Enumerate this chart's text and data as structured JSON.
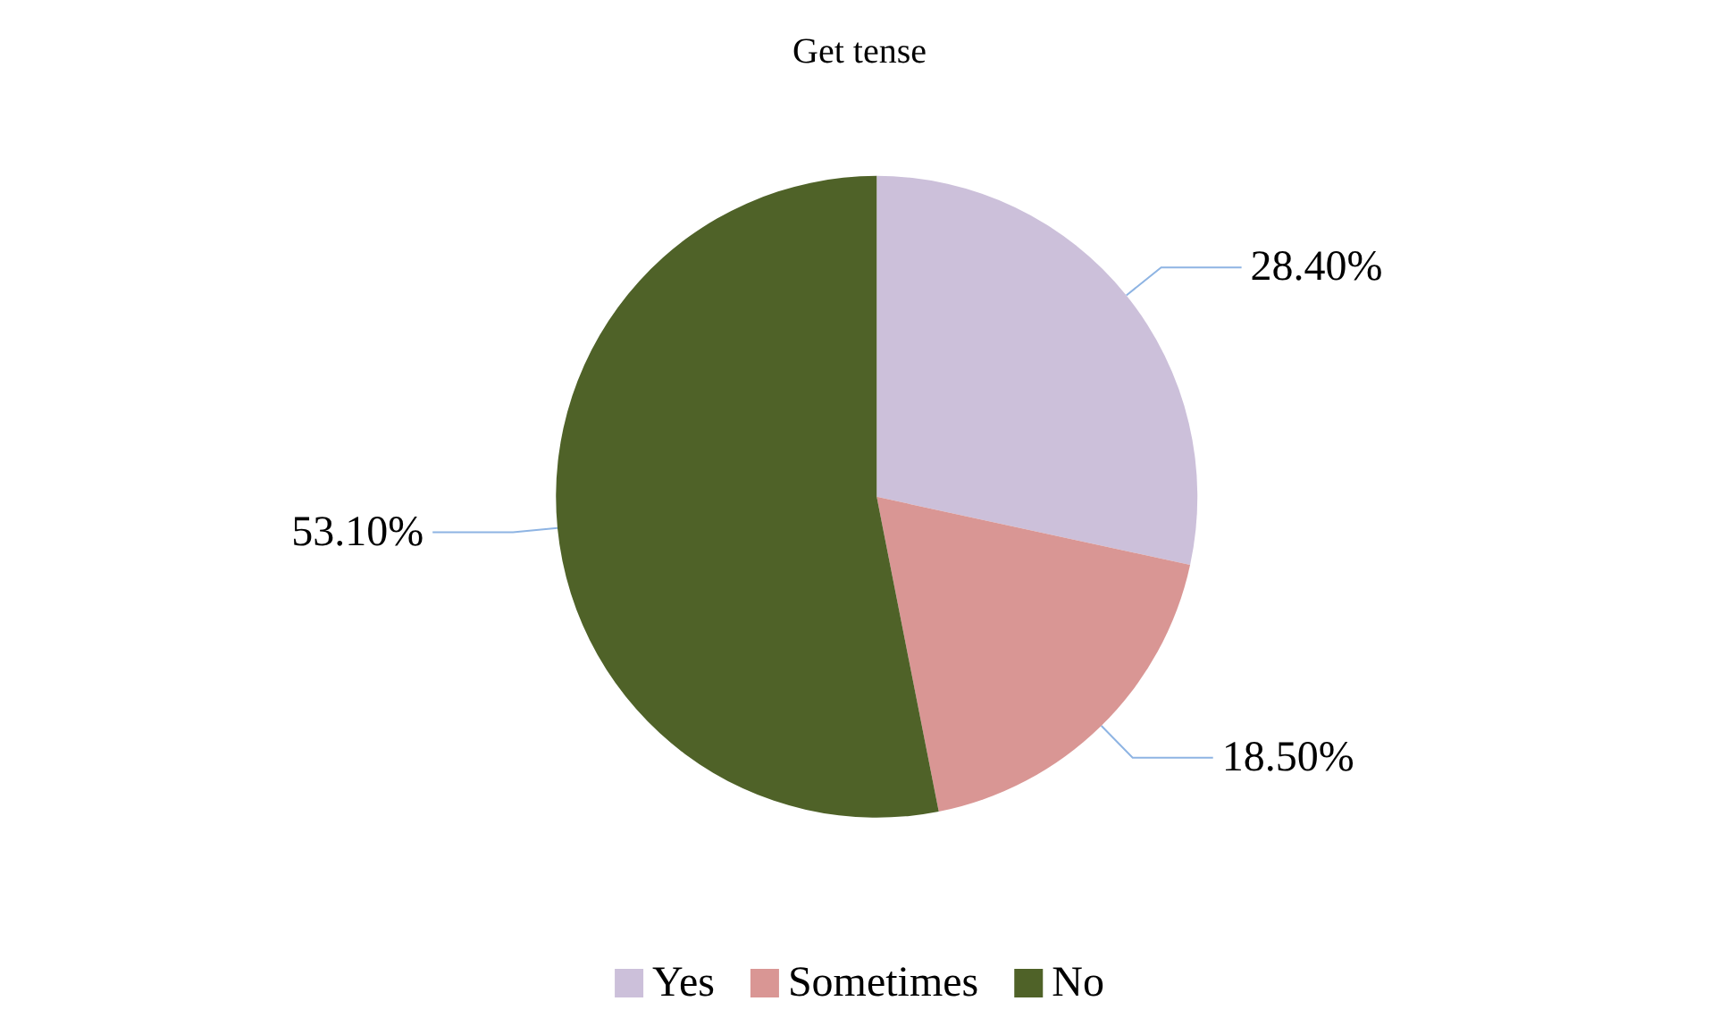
{
  "chart_data": {
    "type": "pie",
    "title": "Get tense",
    "categories": [
      "Yes",
      "Sometimes",
      "No"
    ],
    "values": [
      28.4,
      18.5,
      53.1
    ],
    "colors": [
      "#ccc0da",
      "#d99694",
      "#4f6228"
    ],
    "value_labels": [
      "28.40%",
      "18.50%",
      "53.10%"
    ],
    "legend": "bottom"
  }
}
